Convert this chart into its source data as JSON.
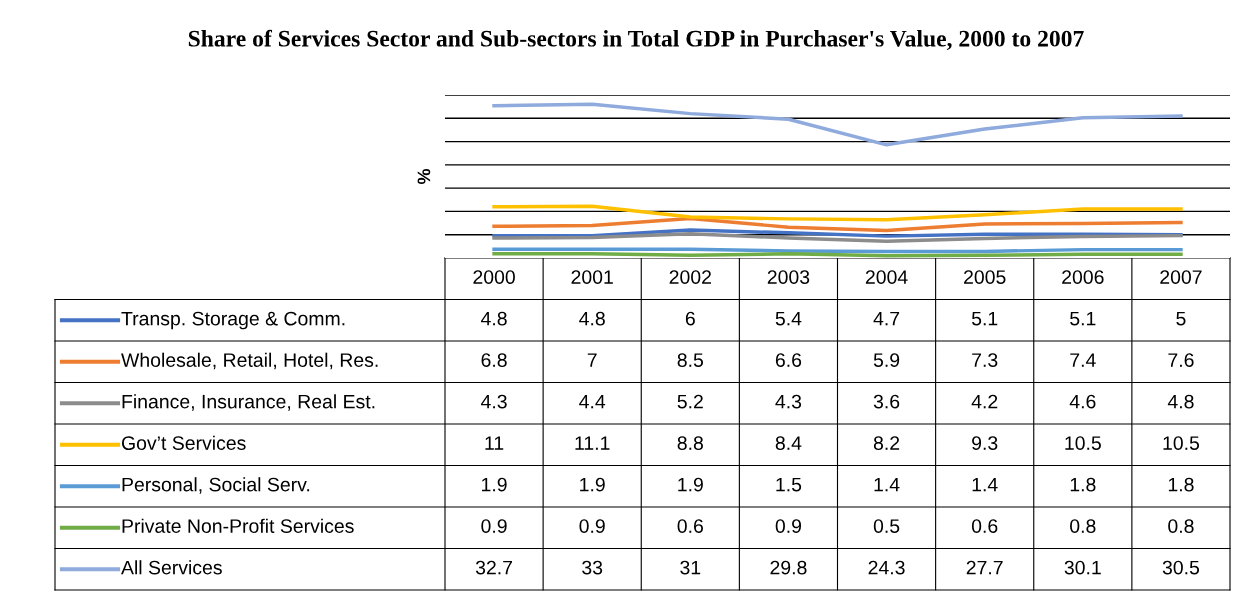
{
  "chart_data": {
    "type": "line",
    "title": "Share of Services Sector and Sub-sectors in Total GDP in Purchaser's Value, 2000 to 2007",
    "ylabel": "%",
    "categories": [
      "2000",
      "2001",
      "2002",
      "2003",
      "2004",
      "2005",
      "2006",
      "2007"
    ],
    "series": [
      {
        "name": "Transp. Storage & Comm.",
        "color": "#4472c4",
        "values": [
          4.8,
          4.8,
          6,
          5.4,
          4.7,
          5.1,
          5.1,
          5
        ]
      },
      {
        "name": "Wholesale, Retail, Hotel, Res.",
        "color": "#ed7d31",
        "values": [
          6.8,
          7,
          8.5,
          6.6,
          5.9,
          7.3,
          7.4,
          7.6
        ]
      },
      {
        "name": "Finance, Insurance, Real Est.",
        "color": "#8c8c8c",
        "values": [
          4.3,
          4.4,
          5.2,
          4.3,
          3.6,
          4.2,
          4.6,
          4.8
        ]
      },
      {
        "name": "Gov’t Services",
        "color": "#ffc000",
        "values": [
          11,
          11.1,
          8.8,
          8.4,
          8.2,
          9.3,
          10.5,
          10.5
        ]
      },
      {
        "name": "Personal, Social Serv.",
        "color": "#5b9bd5",
        "values": [
          1.9,
          1.9,
          1.9,
          1.5,
          1.4,
          1.4,
          1.8,
          1.8
        ]
      },
      {
        "name": "Private Non-Profit Services",
        "color": "#70ad47",
        "values": [
          0.9,
          0.9,
          0.6,
          0.9,
          0.5,
          0.6,
          0.8,
          0.8
        ]
      },
      {
        "name": "All Services",
        "color": "#8faadc",
        "values": [
          32.7,
          33,
          31,
          29.8,
          24.3,
          27.7,
          30.1,
          30.5
        ]
      }
    ],
    "ylim": [
      0,
      35
    ],
    "yticks": [
      {
        "value": 5,
        "label": null
      },
      {
        "value": 10,
        "label": null
      },
      {
        "value": 15,
        "label": null
      },
      {
        "value": 20,
        "label": null
      },
      {
        "value": 25,
        "label": null
      },
      {
        "value": 30,
        "label": null
      },
      {
        "value": 35,
        "label": null
      }
    ],
    "grid": "y",
    "tick_labels": "x",
    "data_labels": true,
    "legend": "bottom",
    "marker": "none",
    "line_style": "solid"
  }
}
